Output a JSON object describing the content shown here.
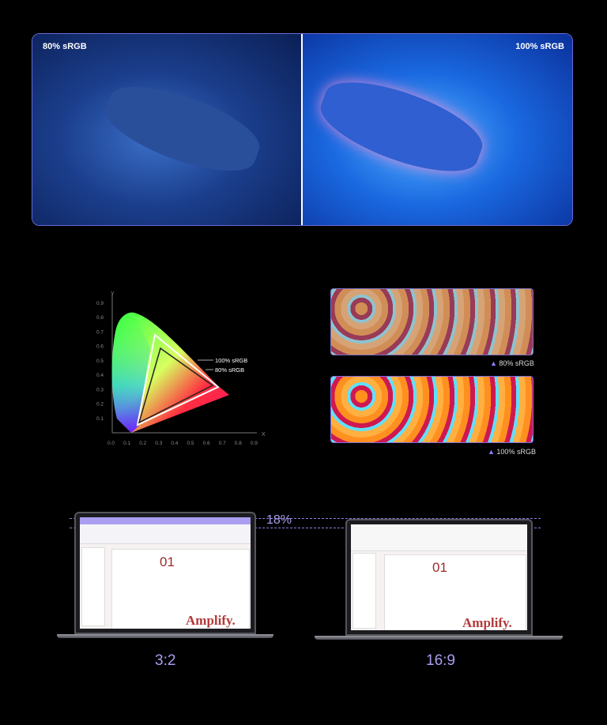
{
  "hero": {
    "left_label": "80% sRGB",
    "right_label": "100% sRGB"
  },
  "gamut_chart": {
    "x_axis_label": "X",
    "y_axis_label": "Y",
    "x_ticks": [
      "0.0",
      "0.1",
      "0.2",
      "0.3",
      "0.4",
      "0.5",
      "0.6",
      "0.7",
      "0.8",
      "0.9"
    ],
    "y_ticks": [
      "0.1",
      "0.2",
      "0.3",
      "0.4",
      "0.5",
      "0.6",
      "0.7",
      "0.8",
      "0.9"
    ],
    "series_labels": [
      "100% sRGB",
      "80% sRGB"
    ]
  },
  "beads": {
    "top_label": "80% sRGB",
    "bottom_label": "100% sRGB",
    "marker_icon": "triangle-up-icon"
  },
  "laptops": {
    "left_ratio": "3:2",
    "right_ratio": "16:9",
    "difference": "18%",
    "slide_number": "01",
    "slide_title": "Amplify."
  },
  "colors": {
    "accent": "#a99ef0",
    "slide_red": "#b23a3a"
  }
}
